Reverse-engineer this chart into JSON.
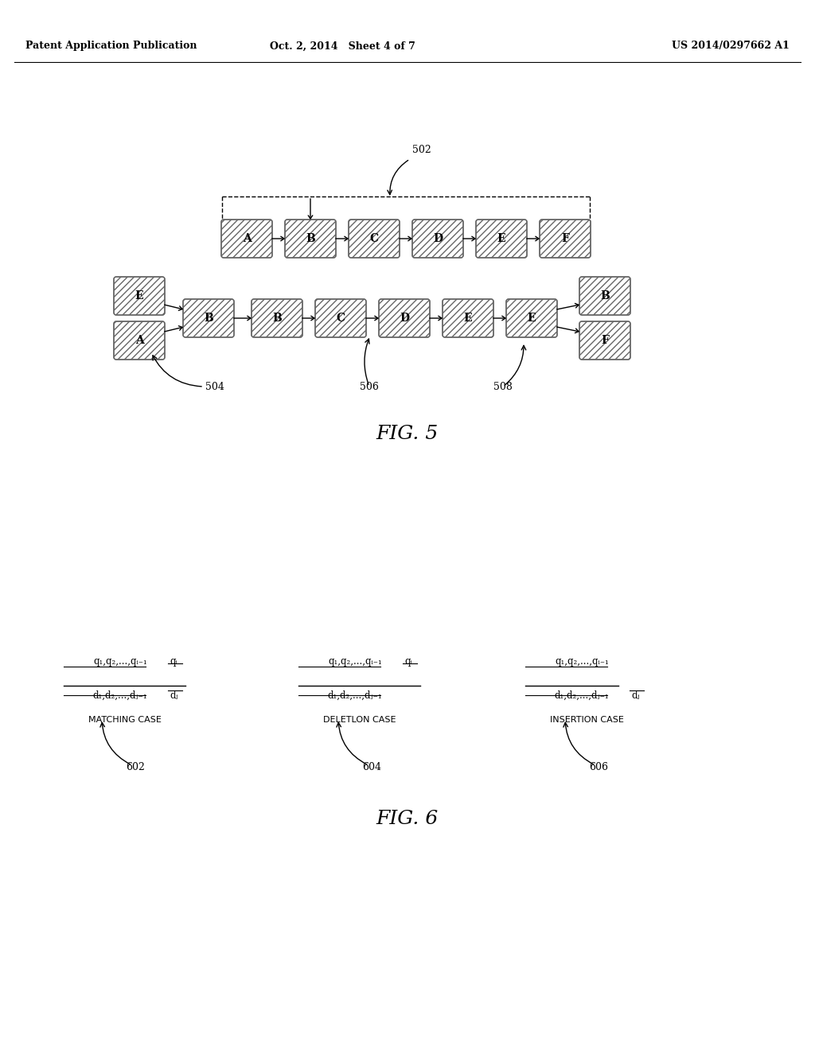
{
  "bg_color": "#ffffff",
  "header_left": "Patent Application Publication",
  "header_mid": "Oct. 2, 2014   Sheet 4 of 7",
  "header_right": "US 2014/0297662 A1",
  "fig5_label": "FIG. 5",
  "fig6_label": "FIG. 6",
  "label_502": "502",
  "label_504": "504",
  "label_506": "506",
  "label_508": "508",
  "label_602": "602",
  "label_604": "604",
  "label_606": "606",
  "matching_case": "MATCHING CASE",
  "deletion_case": "DELETLON CASE",
  "insertion_case": "INSERTION CASE",
  "fig5_row1": [
    "A",
    "B",
    "C",
    "D",
    "E",
    "F"
  ],
  "fig5_left_top": "E",
  "fig5_left_bot": "A",
  "fig5_left_mid": "B",
  "fig5_main": [
    "B",
    "C",
    "D",
    "E"
  ],
  "fig5_right_mid": "E",
  "fig5_right_top": "B",
  "fig5_right_bot": "F"
}
